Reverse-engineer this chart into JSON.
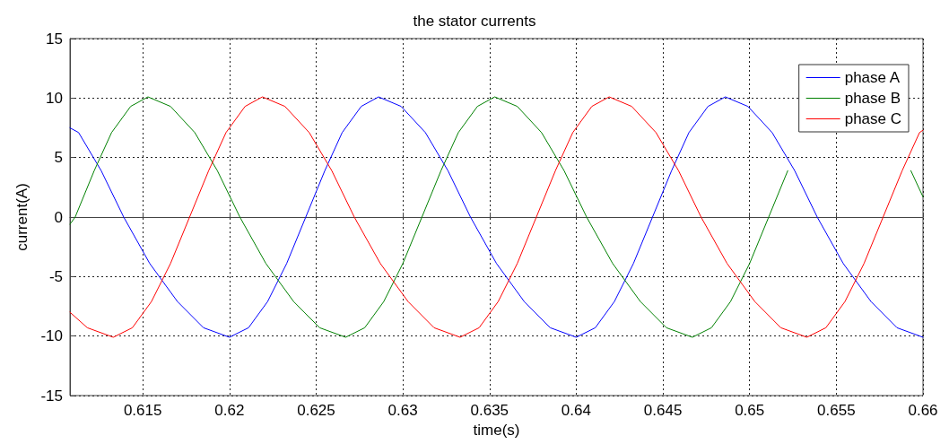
{
  "chart_data": {
    "type": "line",
    "title": "the stator currents",
    "xlabel": "time(s)",
    "ylabel": "current(A)",
    "xlim": [
      0.6108,
      0.66
    ],
    "xticks": [
      0.615,
      0.62,
      0.625,
      0.63,
      0.635,
      0.64,
      0.645,
      0.65,
      0.655,
      0.66
    ],
    "ylim": [
      -15,
      15
    ],
    "yticks": [
      -15,
      -10,
      -5,
      0,
      5,
      10,
      15
    ],
    "grid": true,
    "legend": "top right",
    "marker": "none",
    "line_style": "solid",
    "series": [
      {
        "name": "phase A",
        "color": "#0000ff",
        "x": [
          0.6108,
          0.6113,
          0.6126,
          0.6139,
          0.6154,
          0.617,
          0.6185,
          0.62,
          0.6211,
          0.6222,
          0.6233,
          0.6244,
          0.6255,
          0.6265,
          0.6276,
          0.6286,
          0.6299,
          0.6313,
          0.6326,
          0.6339,
          0.6354,
          0.637,
          0.6385,
          0.64,
          0.6411,
          0.6422,
          0.6433,
          0.6444,
          0.6455,
          0.6465,
          0.6476,
          0.6486,
          0.6499,
          0.6513,
          0.6526,
          0.6539,
          0.6554,
          0.657,
          0.6585,
          0.66
        ],
        "values": [
          7.5,
          7.1,
          3.9,
          0,
          -3.9,
          -7.1,
          -9.3,
          -10.1,
          -9.3,
          -7.1,
          -3.9,
          0,
          3.9,
          7.1,
          9.3,
          10.1,
          9.3,
          7.1,
          3.9,
          0,
          -3.9,
          -7.1,
          -9.3,
          -10.1,
          -9.3,
          -7.1,
          -3.9,
          0,
          3.9,
          7.1,
          9.3,
          10.1,
          9.3,
          7.1,
          3.9,
          0,
          -3.9,
          -7.1,
          -9.3,
          -10.1
        ]
      },
      {
        "name": "phase B",
        "color": "#008000",
        "x": [
          0.6108,
          0.6111,
          0.6122,
          0.6132,
          0.6143,
          0.6153,
          0.6166,
          0.618,
          0.6193,
          0.6206,
          0.6221,
          0.6237,
          0.6252,
          0.6267,
          0.6278,
          0.6289,
          0.63,
          0.6311,
          0.6322,
          0.6332,
          0.6343,
          0.6353,
          0.6366,
          0.638,
          0.6393,
          0.6406,
          0.6421,
          0.6437,
          0.6452,
          0.6467,
          0.6478,
          0.6489,
          0.65,
          0.6511,
          0.6522,
          0.6532,
          0.6543,
          0.6553,
          0.6566,
          0.658,
          0.6593,
          0.66
        ],
        "values": [
          -0.6,
          0,
          3.9,
          7.1,
          9.3,
          10.1,
          9.3,
          7.1,
          3.9,
          0,
          -3.9,
          -7.1,
          -9.3,
          -10.1,
          -9.3,
          -7.1,
          -3.9,
          0,
          3.9,
          7.1,
          9.3,
          10.1,
          9.3,
          7.1,
          3.9,
          0,
          -3.9,
          -7.1,
          -9.3,
          -10.1,
          -9.3,
          -7.1,
          -3.9,
          0,
          3.9,
          null,
          null,
          null,
          null,
          null,
          3.9,
          1.7
        ]
      },
      {
        "name": "phase C",
        "color": "#ff0000",
        "x": [
          0.6108,
          0.6118,
          0.6133,
          0.6144,
          0.6155,
          0.6166,
          0.6177,
          0.6188,
          0.6198,
          0.6209,
          0.6219,
          0.6232,
          0.6246,
          0.6259,
          0.6272,
          0.6287,
          0.6303,
          0.6318,
          0.6333,
          0.6344,
          0.6355,
          0.6366,
          0.6377,
          0.6388,
          0.6398,
          0.6409,
          0.6419,
          0.6432,
          0.6446,
          0.6459,
          0.6472,
          0.6487,
          0.6503,
          0.6518,
          0.6533,
          0.6544,
          0.6555,
          0.6566,
          0.6577,
          0.6588,
          0.6598,
          0.66
        ],
        "values": [
          -8.0,
          -9.3,
          -10.1,
          -9.3,
          -7.1,
          -3.9,
          0,
          3.9,
          7.1,
          9.3,
          10.1,
          9.3,
          7.1,
          3.9,
          0,
          -3.9,
          -7.1,
          -9.3,
          -10.1,
          -9.3,
          -7.1,
          -3.9,
          0,
          3.9,
          7.1,
          9.3,
          10.1,
          9.3,
          7.1,
          3.9,
          0,
          -3.9,
          -7.1,
          -9.3,
          -10.1,
          -9.3,
          -7.1,
          -3.9,
          0,
          3.9,
          7.1,
          7.3
        ]
      }
    ]
  }
}
